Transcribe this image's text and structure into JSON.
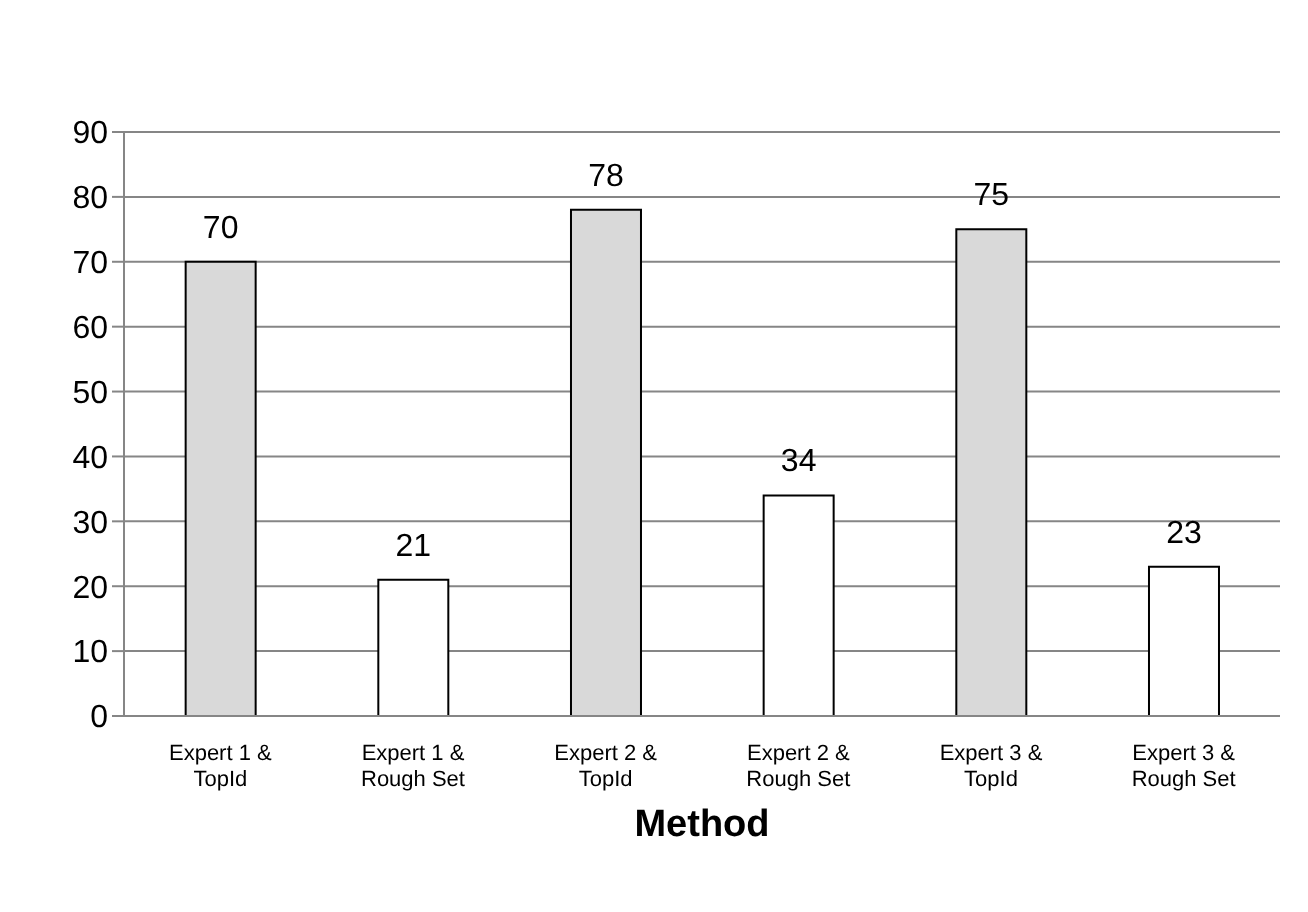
{
  "chart_data": {
    "type": "bar",
    "xlabel": "Method",
    "categories": [
      "Expert 1 & TopId",
      "Expert 1 & Rough Set",
      "Expert 2 & TopId",
      "Expert 2 & Rough Set",
      "Expert 3 & TopId",
      "Expert 3 & Rough Set"
    ],
    "values": [
      70,
      21,
      78,
      34,
      75,
      23
    ],
    "colors": [
      "#d9d9d9",
      "#ffffff",
      "#d9d9d9",
      "#ffffff",
      "#d9d9d9",
      "#ffffff"
    ],
    "ylim": [
      0,
      90
    ],
    "yticks": [
      0,
      10,
      20,
      30,
      40,
      50,
      60,
      70,
      80,
      90
    ],
    "grid": "y",
    "data_labels": true
  }
}
